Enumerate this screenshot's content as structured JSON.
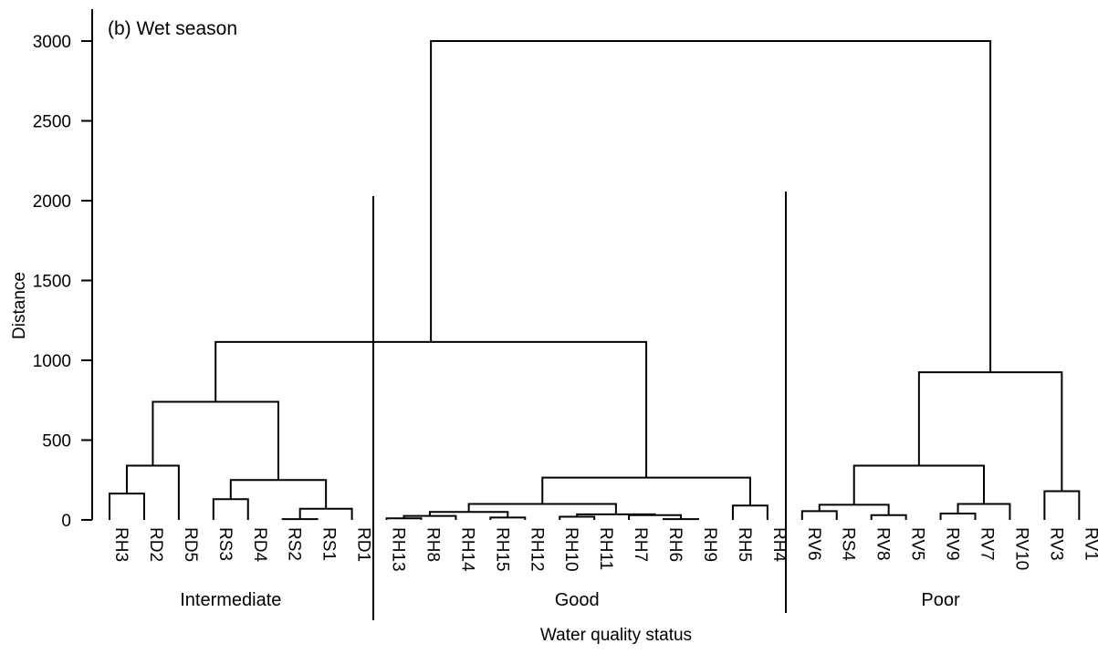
{
  "chart_data": {
    "type": "dendrogram",
    "title": "(b) Wet season",
    "xlabel": "Water quality status",
    "ylabel": "Distance",
    "ylim": [
      0,
      3000
    ],
    "yticks": [
      0,
      500,
      1000,
      1500,
      2000,
      2500,
      3000
    ],
    "leaves": [
      "RH3",
      "RD2",
      "RD5",
      "RS3",
      "RD4",
      "RS2",
      "RS1",
      "RD1",
      "RH13",
      "RH8",
      "RH14",
      "RH15",
      "RH12",
      "RH10",
      "RH11",
      "RH7",
      "RH6",
      "RH9",
      "RH5",
      "RH4",
      "RV6",
      "RS4",
      "RV8",
      "RV5",
      "RV9",
      "RV7",
      "RV10",
      "RV3",
      "RV1"
    ],
    "merges": [
      {
        "left": "RH3",
        "right": "RD2",
        "height": 165
      },
      {
        "left": "m0",
        "right": "RD5",
        "height": 340
      },
      {
        "left": "RS3",
        "right": "RD4",
        "height": 130
      },
      {
        "left": "RS2",
        "right": "RS1",
        "height": 5
      },
      {
        "left": "m3",
        "right": "RD1",
        "height": 70
      },
      {
        "left": "m2",
        "right": "m4",
        "height": 250
      },
      {
        "left": "m1",
        "right": "m5",
        "height": 740
      },
      {
        "left": "RH13",
        "right": "RH8",
        "height": 10
      },
      {
        "left": "m7",
        "right": "RH14",
        "height": 25
      },
      {
        "left": "RH15",
        "right": "RH12",
        "height": 15
      },
      {
        "left": "m8",
        "right": "m9",
        "height": 50
      },
      {
        "left": "RH10",
        "right": "RH11",
        "height": 20
      },
      {
        "left": "RH6",
        "right": "RH9",
        "height": 5
      },
      {
        "left": "RH7",
        "right": "m12",
        "height": 30
      },
      {
        "left": "m11",
        "right": "m13",
        "height": 35
      },
      {
        "left": "m10",
        "right": "m14",
        "height": 100
      },
      {
        "left": "RH5",
        "right": "RH4",
        "height": 90
      },
      {
        "left": "m15",
        "right": "m16",
        "height": 265
      },
      {
        "left": "m6",
        "right": "m17",
        "height": 1115
      },
      {
        "left": "RV6",
        "right": "RS4",
        "height": 55
      },
      {
        "left": "RV8",
        "right": "RV5",
        "height": 30
      },
      {
        "left": "m19",
        "right": "m20",
        "height": 95
      },
      {
        "left": "RV9",
        "right": "RV7",
        "height": 40
      },
      {
        "left": "m22",
        "right": "RV10",
        "height": 100
      },
      {
        "left": "m21",
        "right": "m23",
        "height": 340
      },
      {
        "left": "RV3",
        "right": "RV1",
        "height": 180
      },
      {
        "left": "m24",
        "right": "m25",
        "height": 925
      },
      {
        "left": "m18",
        "right": "m26",
        "height": 3000
      }
    ],
    "groups": [
      {
        "label": "Intermediate",
        "first": 0,
        "last": 7
      },
      {
        "label": "Good",
        "first": 8,
        "last": 19
      },
      {
        "label": "Poor",
        "first": 20,
        "last": 28
      }
    ],
    "grid": false,
    "legend": "none"
  }
}
